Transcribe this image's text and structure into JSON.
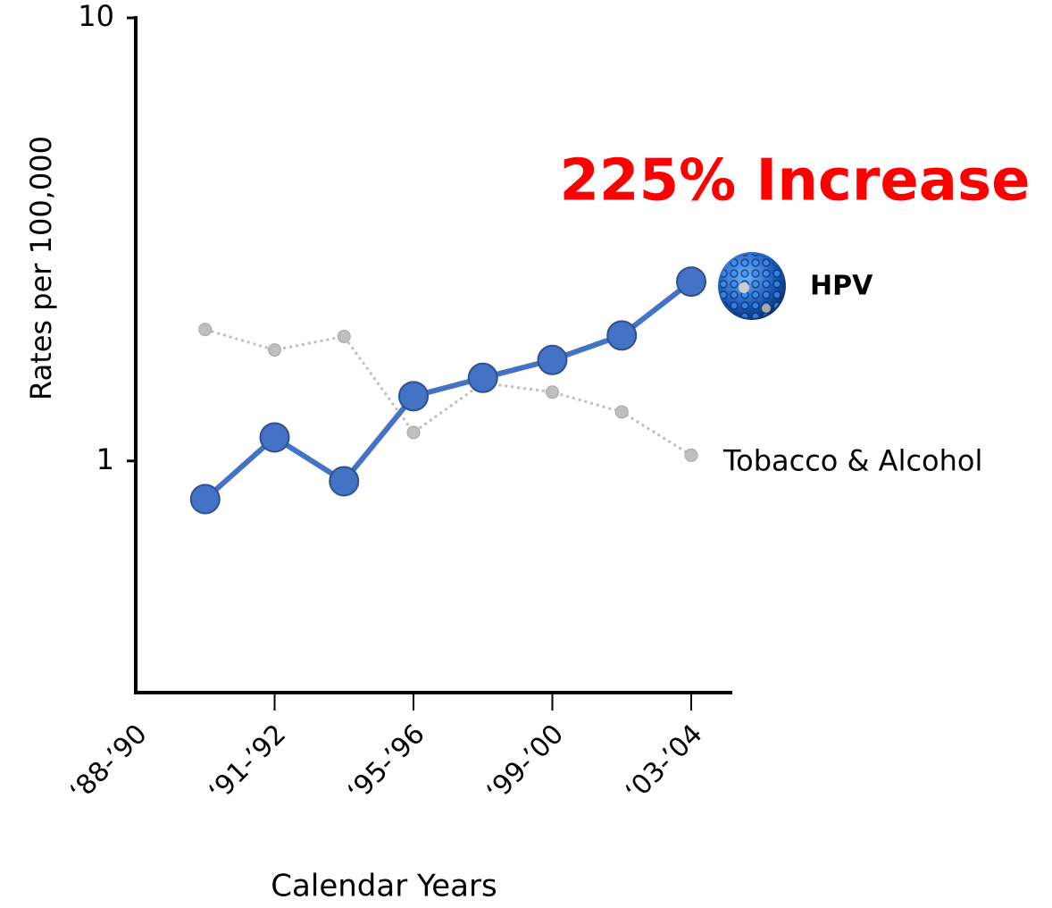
{
  "chart_data": {
    "type": "line",
    "y_label": "Rates per 100,000",
    "x_label": "Calendar Years",
    "annotation": "225% Increase",
    "categories": [
      "‘88-’90",
      null,
      "‘91-’92",
      null,
      "‘95-’96",
      null,
      "‘99-’00",
      null,
      "‘03-’04"
    ],
    "series": [
      {
        "name": "Tobacco & Alcohol",
        "color": "#bfbfbf",
        "values": [
          null,
          1.98,
          1.78,
          1.91,
          1.16,
          1.5,
          1.43,
          1.29,
          1.03
        ]
      },
      {
        "name": "HPV",
        "color": "#4472c4",
        "values": [
          null,
          0.82,
          1.13,
          0.9,
          1.4,
          1.54,
          1.69,
          1.92,
          2.54
        ]
      }
    ],
    "log_scale": true,
    "ylim": [
      0.3,
      10
    ],
    "yticks": [
      1,
      10
    ]
  }
}
